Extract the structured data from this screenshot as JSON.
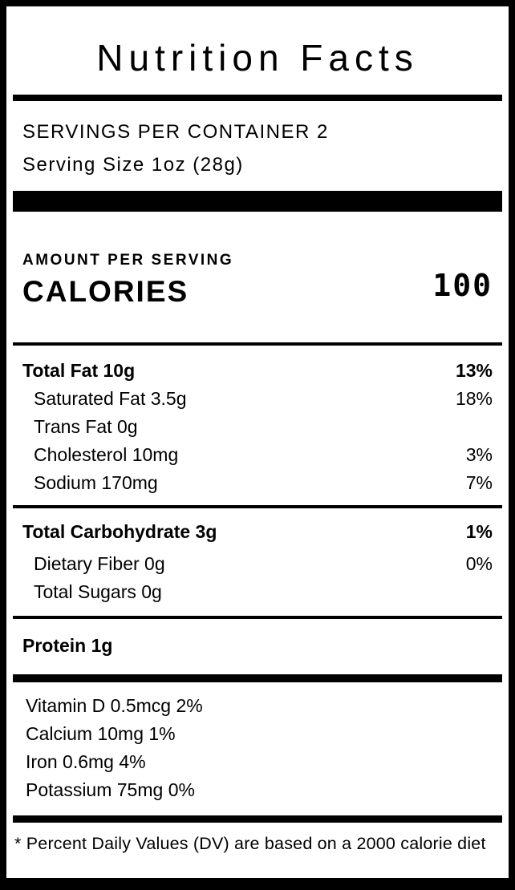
{
  "label": {
    "title": "Nutrition Facts",
    "servings_per_container": "SERVINGS PER CONTAINER 2",
    "serving_size": "Serving Size 1oz (28g)",
    "amount_per_serving": "AMOUNT PER SERVING",
    "calories_label": "CALORIES",
    "calories_value": "100",
    "fats": [
      {
        "name": "Total Fat 10g",
        "dv": "13%"
      },
      {
        "name": "Saturated Fat 3.5g",
        "dv": "18%"
      },
      {
        "name": "Trans Fat 0g",
        "dv": ""
      },
      {
        "name": "Cholesterol 10mg",
        "dv": "3%"
      },
      {
        "name": "Sodium 170mg",
        "dv": "7%"
      }
    ],
    "carbohydrates": [
      {
        "name": "Total Carbohydrate 3g",
        "dv": "1%"
      },
      {
        "name": "Dietary Fiber 0g",
        "dv": "0%"
      },
      {
        "name": "Total Sugars 0g",
        "dv": ""
      }
    ],
    "protein": {
      "name": "Protein 1g",
      "dv": ""
    },
    "vitamins": [
      "Vitamin D 0.5mcg 2%",
      "Calcium 10mg 1%",
      "Iron 0.6mg 4%",
      "Potassium 75mg 0%"
    ],
    "footnote": "* Percent Daily Values (DV) are based on a 2000 calorie diet",
    "colors": {
      "text": "#000000",
      "background": "#ffffff",
      "rule": "#000000"
    }
  }
}
